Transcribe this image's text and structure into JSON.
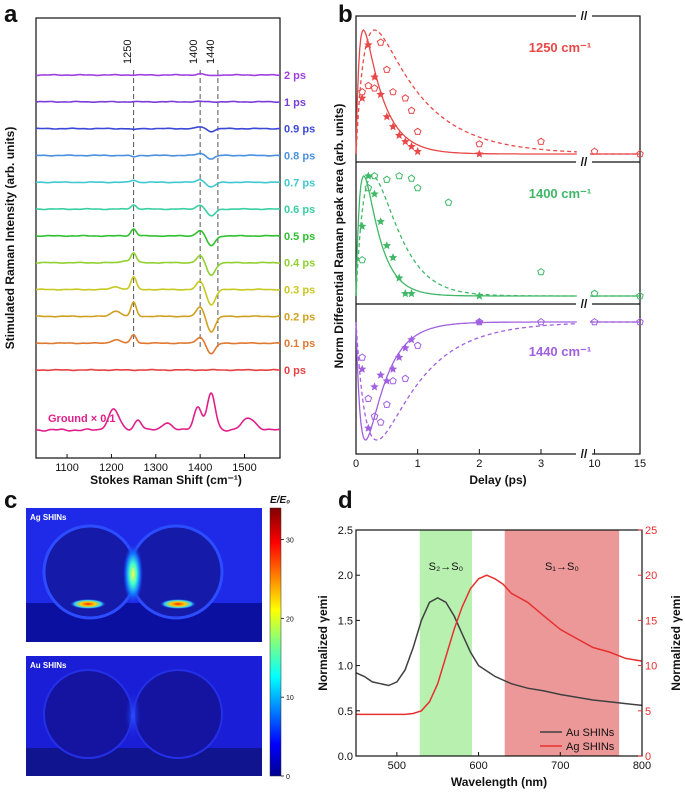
{
  "panels": {
    "a": "a",
    "b": "b",
    "c": "c",
    "d": "d"
  },
  "chart_data": [
    {
      "panel": "a",
      "type": "line",
      "xlabel": "Stokes Raman Shift (cm⁻¹)",
      "ylabel": "Stimulated Raman Intensity (arb. units)",
      "xlim": [
        1030,
        1580
      ],
      "xticks": [
        1100,
        1200,
        1300,
        1400,
        1500
      ],
      "markers": [
        {
          "pos": 1250,
          "label": "1250"
        },
        {
          "pos": 1400,
          "label": "1400"
        },
        {
          "pos": 1440,
          "label": "1440"
        }
      ],
      "series": [
        {
          "name": "2 ps",
          "color": "#a040e0",
          "peaks": [
            [
              1400,
              1.5,
              8
            ],
            [
              1425,
              -1.0,
              8
            ]
          ]
        },
        {
          "name": "1 ps",
          "color": "#7a3ed8",
          "peaks": [
            [
              1400,
              0.5,
              8
            ]
          ]
        },
        {
          "name": "0.9 ps",
          "color": "#3a48d8",
          "peaks": [
            [
              1250,
              -1.5,
              6
            ],
            [
              1400,
              2.5,
              8
            ],
            [
              1425,
              -4.0,
              8
            ]
          ]
        },
        {
          "name": "0.8 ps",
          "color": "#4a90e0",
          "peaks": [
            [
              1250,
              -2.0,
              6
            ],
            [
              1400,
              3.0,
              8
            ],
            [
              1425,
              -5.0,
              8
            ]
          ]
        },
        {
          "name": "0.7 ps",
          "color": "#40c8d0",
          "peaks": [
            [
              1250,
              3.0,
              6
            ],
            [
              1400,
              4.0,
              8
            ],
            [
              1425,
              -7.0,
              9
            ]
          ]
        },
        {
          "name": "0.6 ps",
          "color": "#38d0a0",
          "peaks": [
            [
              1250,
              6.0,
              6
            ],
            [
              1400,
              6.0,
              8
            ],
            [
              1425,
              -10.0,
              9
            ]
          ]
        },
        {
          "name": "0.5 ps",
          "color": "#30c030",
          "peaks": [
            [
              1250,
              10.0,
              6
            ],
            [
              1400,
              8.0,
              8
            ],
            [
              1425,
              -14.0,
              9
            ]
          ]
        },
        {
          "name": "0.4 ps",
          "color": "#90d030",
          "peaks": [
            [
              1230,
              3.0,
              8
            ],
            [
              1250,
              14.0,
              6
            ],
            [
              1400,
              10.0,
              8
            ],
            [
              1425,
              -18.0,
              9
            ]
          ]
        },
        {
          "name": "0.3 ps",
          "color": "#c8c820",
          "peaks": [
            [
              1210,
              4.0,
              10
            ],
            [
              1250,
              18.0,
              6
            ],
            [
              1400,
              12.0,
              8
            ],
            [
              1425,
              -22.0,
              9
            ]
          ]
        },
        {
          "name": "0.2 ps",
          "color": "#d0a020",
          "peaks": [
            [
              1210,
              8.0,
              10
            ],
            [
              1250,
              20.0,
              6
            ],
            [
              1400,
              14.0,
              8
            ],
            [
              1425,
              -22.0,
              9
            ]
          ]
        },
        {
          "name": "0.1 ps",
          "color": "#e07830",
          "peaks": [
            [
              1210,
              5.0,
              10
            ],
            [
              1250,
              12.0,
              6
            ],
            [
              1400,
              9.0,
              8
            ],
            [
              1425,
              -15.0,
              9
            ]
          ]
        },
        {
          "name": "0 ps",
          "color": "#e84040",
          "peaks": []
        }
      ],
      "ground": {
        "name": "Ground × 0.1",
        "color": "#e0208a",
        "peaks": [
          [
            1205,
            16,
            12
          ],
          [
            1260,
            8,
            8
          ],
          [
            1325,
            6,
            10
          ],
          [
            1395,
            18,
            9
          ],
          [
            1425,
            28,
            9
          ],
          [
            1510,
            9,
            15
          ]
        ]
      }
    },
    {
      "panel": "b",
      "type": "scatter",
      "xlabel": "Delay (ps)",
      "ylabel": "Norm Differential Raman peak area (arb. units)",
      "xticks_left": [
        0,
        1,
        2,
        3
      ],
      "xticks_right": [
        10,
        15
      ],
      "subplots": [
        {
          "label": "1250 cm⁻¹",
          "color": "#e84848",
          "sign": 1,
          "stars": [
            [
              0.1,
              0.45
            ],
            [
              0.2,
              0.88
            ],
            [
              0.3,
              0.62
            ],
            [
              0.4,
              0.48
            ],
            [
              0.5,
              0.3
            ],
            [
              0.6,
              0.22
            ],
            [
              0.7,
              0.15
            ],
            [
              0.8,
              0.1
            ],
            [
              0.9,
              0.06
            ],
            [
              1.0,
              0.02
            ],
            [
              2.0,
              0.0
            ]
          ],
          "circles": [
            [
              0.1,
              0.5
            ],
            [
              0.2,
              0.55
            ],
            [
              0.3,
              0.53
            ],
            [
              0.4,
              0.9
            ],
            [
              0.5,
              0.68
            ],
            [
              0.6,
              0.5
            ],
            [
              0.8,
              0.45
            ],
            [
              0.9,
              0.35
            ],
            [
              1.0,
              0.18
            ],
            [
              2.0,
              0.08
            ],
            [
              3.0,
              0.1
            ],
            [
              10,
              0.02
            ],
            [
              15,
              0.0
            ]
          ]
        },
        {
          "label": "1400 cm⁻¹",
          "color": "#40b868",
          "sign": 1,
          "stars": [
            [
              0.1,
              0.58
            ],
            [
              0.2,
              1.0
            ],
            [
              0.3,
              0.85
            ],
            [
              0.4,
              0.62
            ],
            [
              0.5,
              0.42
            ],
            [
              0.6,
              0.32
            ],
            [
              0.7,
              0.15
            ],
            [
              0.8,
              0.02
            ],
            [
              0.9,
              0.02
            ],
            [
              2.0,
              0.0
            ]
          ],
          "circles": [
            [
              0.1,
              0.3
            ],
            [
              0.2,
              0.9
            ],
            [
              0.3,
              1.0
            ],
            [
              0.5,
              0.97
            ],
            [
              0.7,
              1.0
            ],
            [
              0.9,
              0.98
            ],
            [
              1.0,
              0.9
            ],
            [
              1.5,
              0.78
            ],
            [
              3.0,
              0.2
            ],
            [
              10,
              0.02
            ],
            [
              15,
              0.0
            ]
          ]
        },
        {
          "label": "1440 cm⁻¹",
          "color": "#a060e0",
          "sign": -1,
          "stars": [
            [
              0.1,
              0.4
            ],
            [
              0.2,
              0.9
            ],
            [
              0.3,
              0.55
            ],
            [
              0.4,
              0.45
            ],
            [
              0.5,
              0.5
            ],
            [
              0.6,
              0.4
            ],
            [
              0.7,
              0.3
            ],
            [
              0.8,
              0.22
            ],
            [
              0.9,
              0.15
            ],
            [
              2.0,
              0.0
            ]
          ],
          "circles": [
            [
              0.1,
              0.3
            ],
            [
              0.2,
              0.65
            ],
            [
              0.3,
              0.8
            ],
            [
              0.4,
              0.85
            ],
            [
              0.5,
              0.7
            ],
            [
              0.6,
              0.5
            ],
            [
              0.8,
              0.48
            ],
            [
              1.0,
              0.2
            ],
            [
              2.0,
              0.0
            ],
            [
              3.0,
              0.0
            ],
            [
              10,
              0.0
            ],
            [
              15,
              0.0
            ]
          ]
        }
      ]
    },
    {
      "panel": "c",
      "type": "heatmap",
      "colorbar_title": "E/E₀",
      "colorbar_ticks": [
        0,
        10,
        20,
        30
      ],
      "maps": [
        {
          "label": "Ag SHINs"
        },
        {
          "label": "Au SHINs"
        }
      ]
    },
    {
      "panel": "d",
      "type": "line",
      "xlabel": "Wavelength (nm)",
      "ylabel_left": "Normalized γemi",
      "ylabel_right": "Normalized γemi",
      "xlim": [
        450,
        800
      ],
      "xticks": [
        500,
        600,
        700,
        800
      ],
      "ylim_left": [
        0,
        2.5
      ],
      "yticks_left": [
        0.0,
        0.5,
        1.0,
        1.5,
        2.0,
        2.5
      ],
      "ylim_right": [
        0,
        25
      ],
      "yticks_right": [
        0,
        5,
        10,
        15,
        20,
        25
      ],
      "bands": [
        {
          "label": "S₂→S₀",
          "from": 528,
          "to": 592,
          "color": "#b8f0b0"
        },
        {
          "label": "S₁→S₀",
          "from": 632,
          "to": 772,
          "color": "#ec9898"
        }
      ],
      "series": [
        {
          "name": "Au SHINs",
          "color": "#404040",
          "axis": "left",
          "x": [
            450,
            460,
            470,
            480,
            490,
            500,
            510,
            520,
            530,
            540,
            550,
            560,
            570,
            580,
            590,
            600,
            620,
            640,
            660,
            680,
            700,
            720,
            740,
            760,
            780,
            800
          ],
          "y": [
            0.92,
            0.88,
            0.82,
            0.8,
            0.78,
            0.82,
            0.95,
            1.2,
            1.5,
            1.7,
            1.75,
            1.7,
            1.55,
            1.35,
            1.15,
            1.0,
            0.88,
            0.8,
            0.75,
            0.72,
            0.68,
            0.65,
            0.62,
            0.6,
            0.58,
            0.56
          ]
        },
        {
          "name": "Ag SHINs",
          "color": "#e83030",
          "axis": "right",
          "x": [
            450,
            480,
            510,
            520,
            530,
            540,
            550,
            560,
            570,
            580,
            590,
            600,
            610,
            620,
            630,
            640,
            660,
            680,
            700,
            720,
            740,
            760,
            780,
            800
          ],
          "y": [
            4.6,
            4.6,
            4.6,
            4.7,
            5.0,
            6.0,
            8.0,
            11.0,
            14.0,
            16.5,
            18.5,
            19.6,
            20.0,
            19.6,
            19.0,
            18.0,
            17.0,
            15.5,
            14.0,
            13.0,
            12.0,
            11.5,
            10.8,
            10.5
          ]
        }
      ]
    }
  ]
}
